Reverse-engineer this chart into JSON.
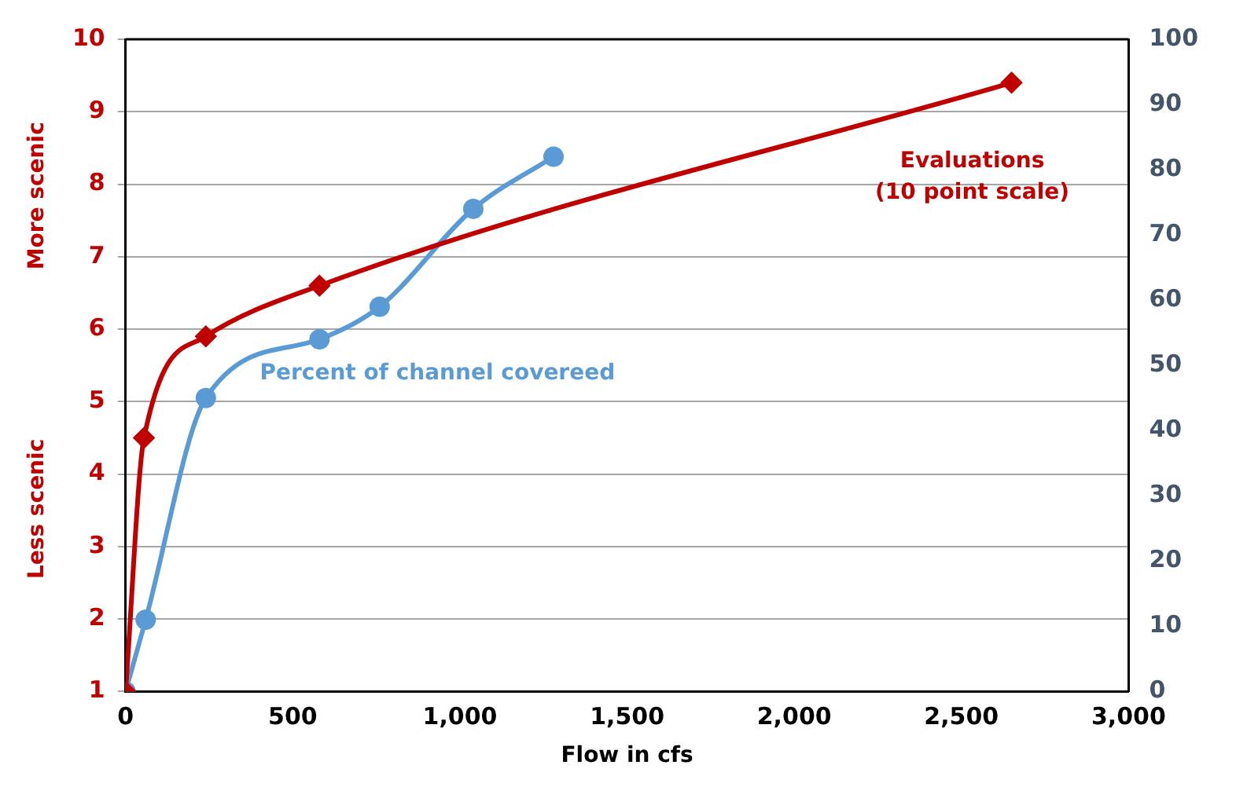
{
  "chart_data": {
    "type": "line",
    "xlabel": "Flow in cfs",
    "annotations": [
      "More scenic",
      "Less scenic"
    ],
    "xlim": [
      0,
      3000
    ],
    "xticks": [
      {
        "value": 0,
        "label": "0"
      },
      {
        "value": 500,
        "label": "500"
      },
      {
        "value": 1000,
        "label": "1,000"
      },
      {
        "value": 1500,
        "label": "1,500"
      },
      {
        "value": 2000,
        "label": "2,000"
      },
      {
        "value": 2500,
        "label": "2,500"
      },
      {
        "value": 3000,
        "label": "3,000"
      }
    ],
    "ylim": [
      1,
      10
    ],
    "yticks": [
      1,
      2,
      3,
      4,
      5,
      6,
      7,
      8,
      9,
      10
    ],
    "y2lim": [
      0,
      100
    ],
    "y2ticks": [
      0,
      10,
      20,
      30,
      40,
      50,
      60,
      70,
      80,
      90,
      100
    ],
    "grid": "y",
    "legend": false,
    "series": [
      {
        "name": "Evaluations\n(10 point scale)",
        "color": "#c00000",
        "marker": "diamond",
        "x": [
          0,
          55,
          240,
          580,
          2650
        ],
        "values": [
          1,
          4.5,
          5.9,
          6.6,
          9.4
        ]
      },
      {
        "name": "Percent of channel covereed",
        "color": "#5b9bd5",
        "marker": "circle",
        "axis": "y2",
        "x": [
          0,
          60,
          240,
          580,
          760,
          1040,
          1280
        ],
        "values": [
          0,
          11,
          45,
          54,
          59,
          74,
          82
        ]
      }
    ]
  }
}
